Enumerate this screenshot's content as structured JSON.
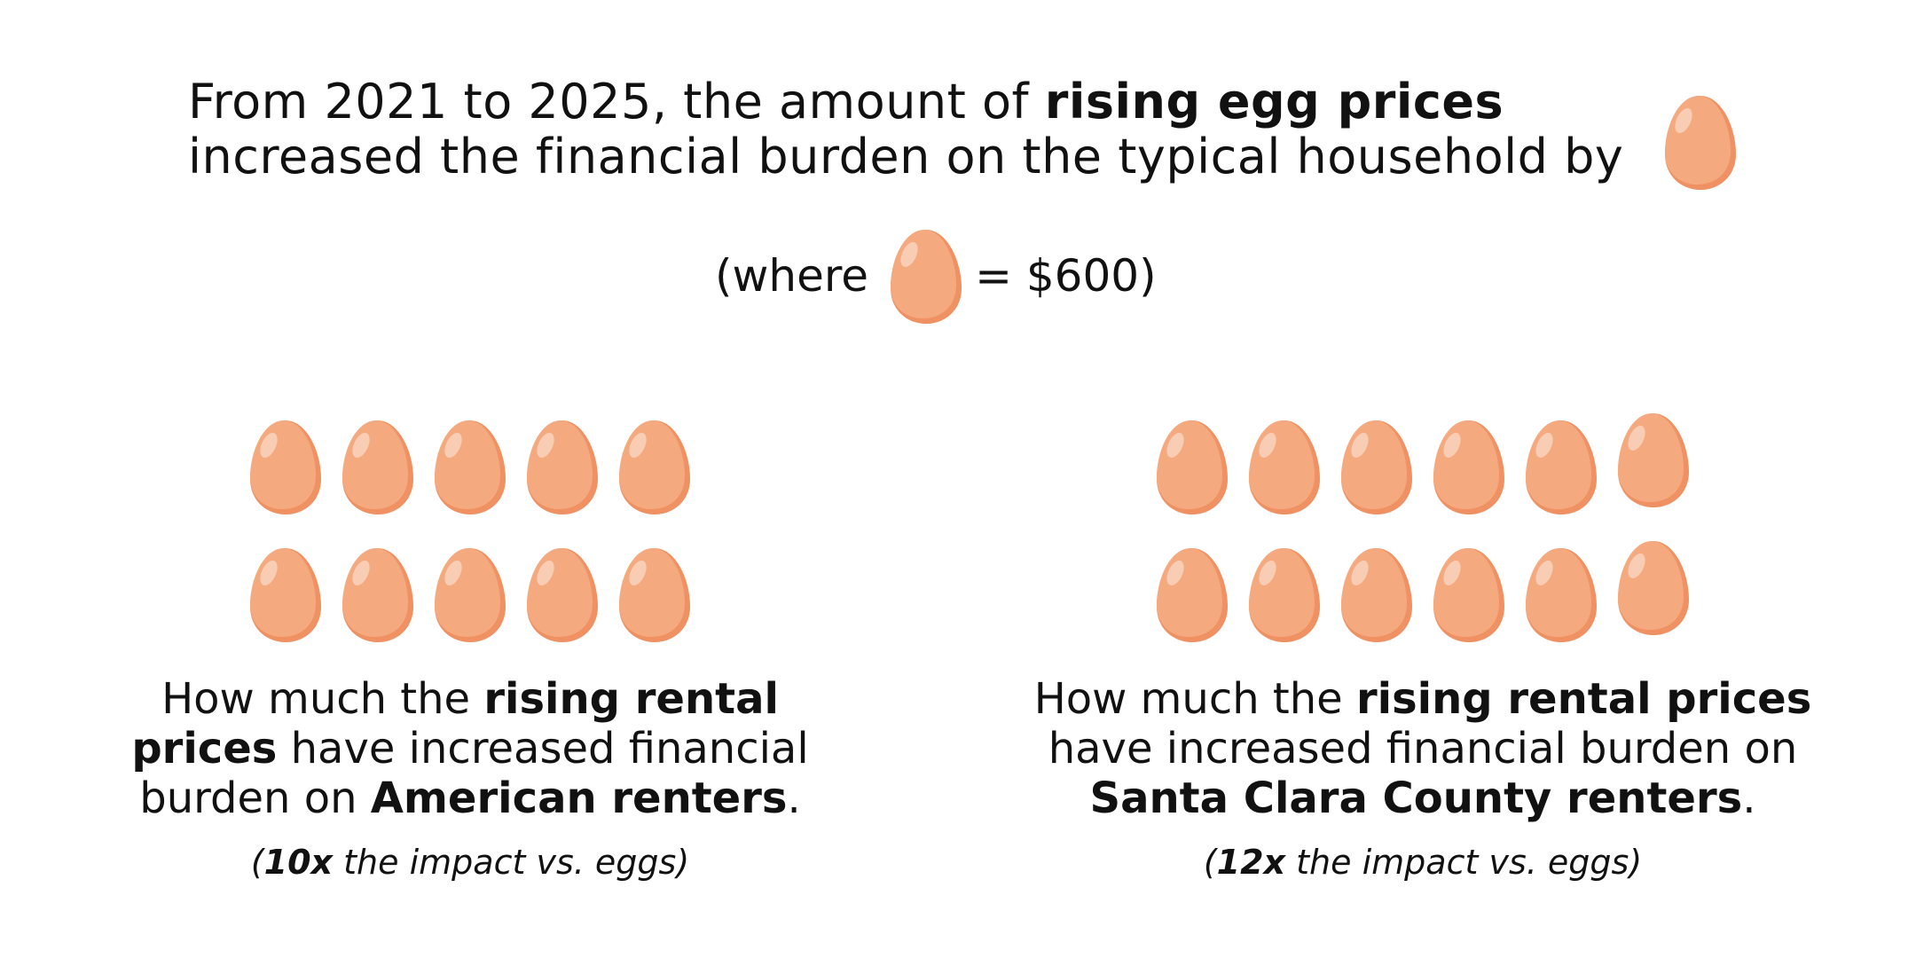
{
  "headline": {
    "part1": "From 2021 to 2025, the amount of ",
    "bold1": "rising egg prices",
    "line2": "increased the financial burden on the typical household by"
  },
  "legend": {
    "prefix": "(where",
    "suffix": "= $600)"
  },
  "colors": {
    "egg_body": "#F4A97F",
    "egg_shadow": "#EF9162",
    "egg_highlight": "#F9CDB4",
    "text": "#111111"
  },
  "icon": "egg-icon",
  "left_panel": {
    "egg_count": 10,
    "text_part1": "How much the ",
    "text_bold1": "rising rental prices",
    "text_part2": " have increased financial burden on ",
    "text_bold2": "American renters",
    "text_end": ".",
    "note_open": "(",
    "note_bold": "10x",
    "note_rest": " the impact vs. eggs)"
  },
  "right_panel": {
    "egg_count": 12,
    "text_part1": "How much the ",
    "text_bold1": "rising rental prices",
    "text_part2": " have increased financial burden on ",
    "text_bold2": "Santa Clara County renters",
    "text_end": ".",
    "note_open": "(",
    "note_bold": "12x",
    "note_rest": " the impact vs. eggs)"
  }
}
